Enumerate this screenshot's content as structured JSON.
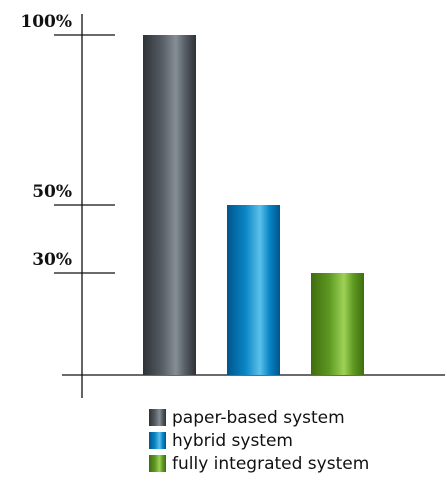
{
  "chart_data": {
    "type": "bar",
    "categories": [
      "paper-based system",
      "hybrid system",
      "fully integrated system"
    ],
    "values": [
      100,
      50,
      30
    ],
    "ylim": [
      0,
      100
    ],
    "yticks": [
      {
        "value": 100,
        "label": "100%"
      },
      {
        "value": 50,
        "label": "50%"
      },
      {
        "value": 30,
        "label": "30%"
      }
    ],
    "legend_position": "bottom",
    "grid": false,
    "colors": {
      "paper-based system": {
        "dark": "#2e3236",
        "mid": "#555c63",
        "light": "#868e96"
      },
      "hybrid system": {
        "dark": "#00558c",
        "mid": "#0a86c6",
        "light": "#5cc0ea"
      },
      "fully integrated system": {
        "dark": "#3f6c10",
        "mid": "#5e9a22",
        "light": "#9fd257"
      }
    }
  }
}
